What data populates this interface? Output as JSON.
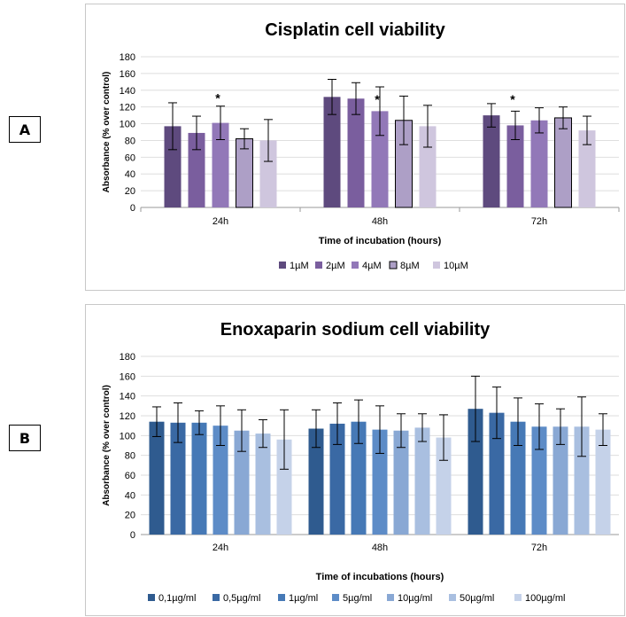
{
  "panels": {
    "a": "A",
    "b": "B"
  },
  "chart_data": [
    {
      "type": "bar",
      "title": "Cisplatin cell viability",
      "xlabel": "Time of incubation (hours)",
      "ylabel": "Absorbance (% over control)",
      "ylim": [
        0,
        180
      ],
      "yticks": [
        0,
        20,
        40,
        60,
        80,
        100,
        120,
        140,
        160,
        180
      ],
      "categories": [
        "24h",
        "48h",
        "72h"
      ],
      "legend_position": "bottom",
      "gridlines": true,
      "series": [
        {
          "name": "1µM",
          "color": "#5e4a7e",
          "values": [
            97,
            132,
            110
          ],
          "errors": [
            28,
            21,
            14
          ]
        },
        {
          "name": "2µM",
          "color": "#7a5e9e",
          "values": [
            89,
            130,
            98
          ],
          "errors": [
            20,
            19,
            17
          ]
        },
        {
          "name": "4µM",
          "color": "#9278b8",
          "values": [
            101,
            115,
            104
          ],
          "errors": [
            20,
            29,
            15
          ]
        },
        {
          "name": "8µM",
          "color": "#ad9fc6",
          "values": [
            82,
            104,
            107
          ],
          "errors": [
            12,
            29,
            13
          ]
        },
        {
          "name": "10µM",
          "color": "#cfc6de",
          "values": [
            80,
            97,
            92
          ],
          "errors": [
            25,
            25,
            17
          ]
        }
      ],
      "annotations": [
        {
          "text": "*",
          "category": "24h",
          "series": "4µM",
          "y": 132
        },
        {
          "text": "*",
          "category": "48h",
          "series": "4µM",
          "y": 130
        },
        {
          "text": "*",
          "category": "72h",
          "series": "2µM",
          "y": 130
        }
      ]
    },
    {
      "type": "bar",
      "title": "Enoxaparin sodium cell viability",
      "xlabel": "Time of incubations (hours)",
      "ylabel": "Absorbance (% over control)",
      "ylim": [
        0,
        180
      ],
      "yticks": [
        0,
        20,
        40,
        60,
        80,
        100,
        120,
        140,
        160,
        180
      ],
      "categories": [
        "24h",
        "48h",
        "72h"
      ],
      "legend_position": "bottom",
      "gridlines": true,
      "series": [
        {
          "name": "0,1µg/ml",
          "color": "#2f5b8f",
          "values": [
            114,
            107,
            127
          ],
          "errors": [
            15,
            19,
            33
          ]
        },
        {
          "name": "0,5µg/ml",
          "color": "#3a69a4",
          "values": [
            113,
            112,
            123
          ],
          "errors": [
            20,
            21,
            26
          ]
        },
        {
          "name": "1µg/ml",
          "color": "#4679b6",
          "values": [
            113,
            114,
            114
          ],
          "errors": [
            12,
            22,
            24
          ]
        },
        {
          "name": "5µg/ml",
          "color": "#5d8cc7",
          "values": [
            110,
            106,
            109
          ],
          "errors": [
            20,
            24,
            23
          ]
        },
        {
          "name": "10µg/ml",
          "color": "#89a8d4",
          "values": [
            105,
            105,
            109
          ],
          "errors": [
            21,
            17,
            18
          ]
        },
        {
          "name": "50µg/ml",
          "color": "#a9bfe0",
          "values": [
            102,
            108,
            109
          ],
          "errors": [
            14,
            14,
            30
          ]
        },
        {
          "name": "100µg/ml",
          "color": "#c5d2e9",
          "values": [
            96,
            98,
            106
          ],
          "errors": [
            30,
            23,
            16
          ]
        }
      ]
    }
  ]
}
